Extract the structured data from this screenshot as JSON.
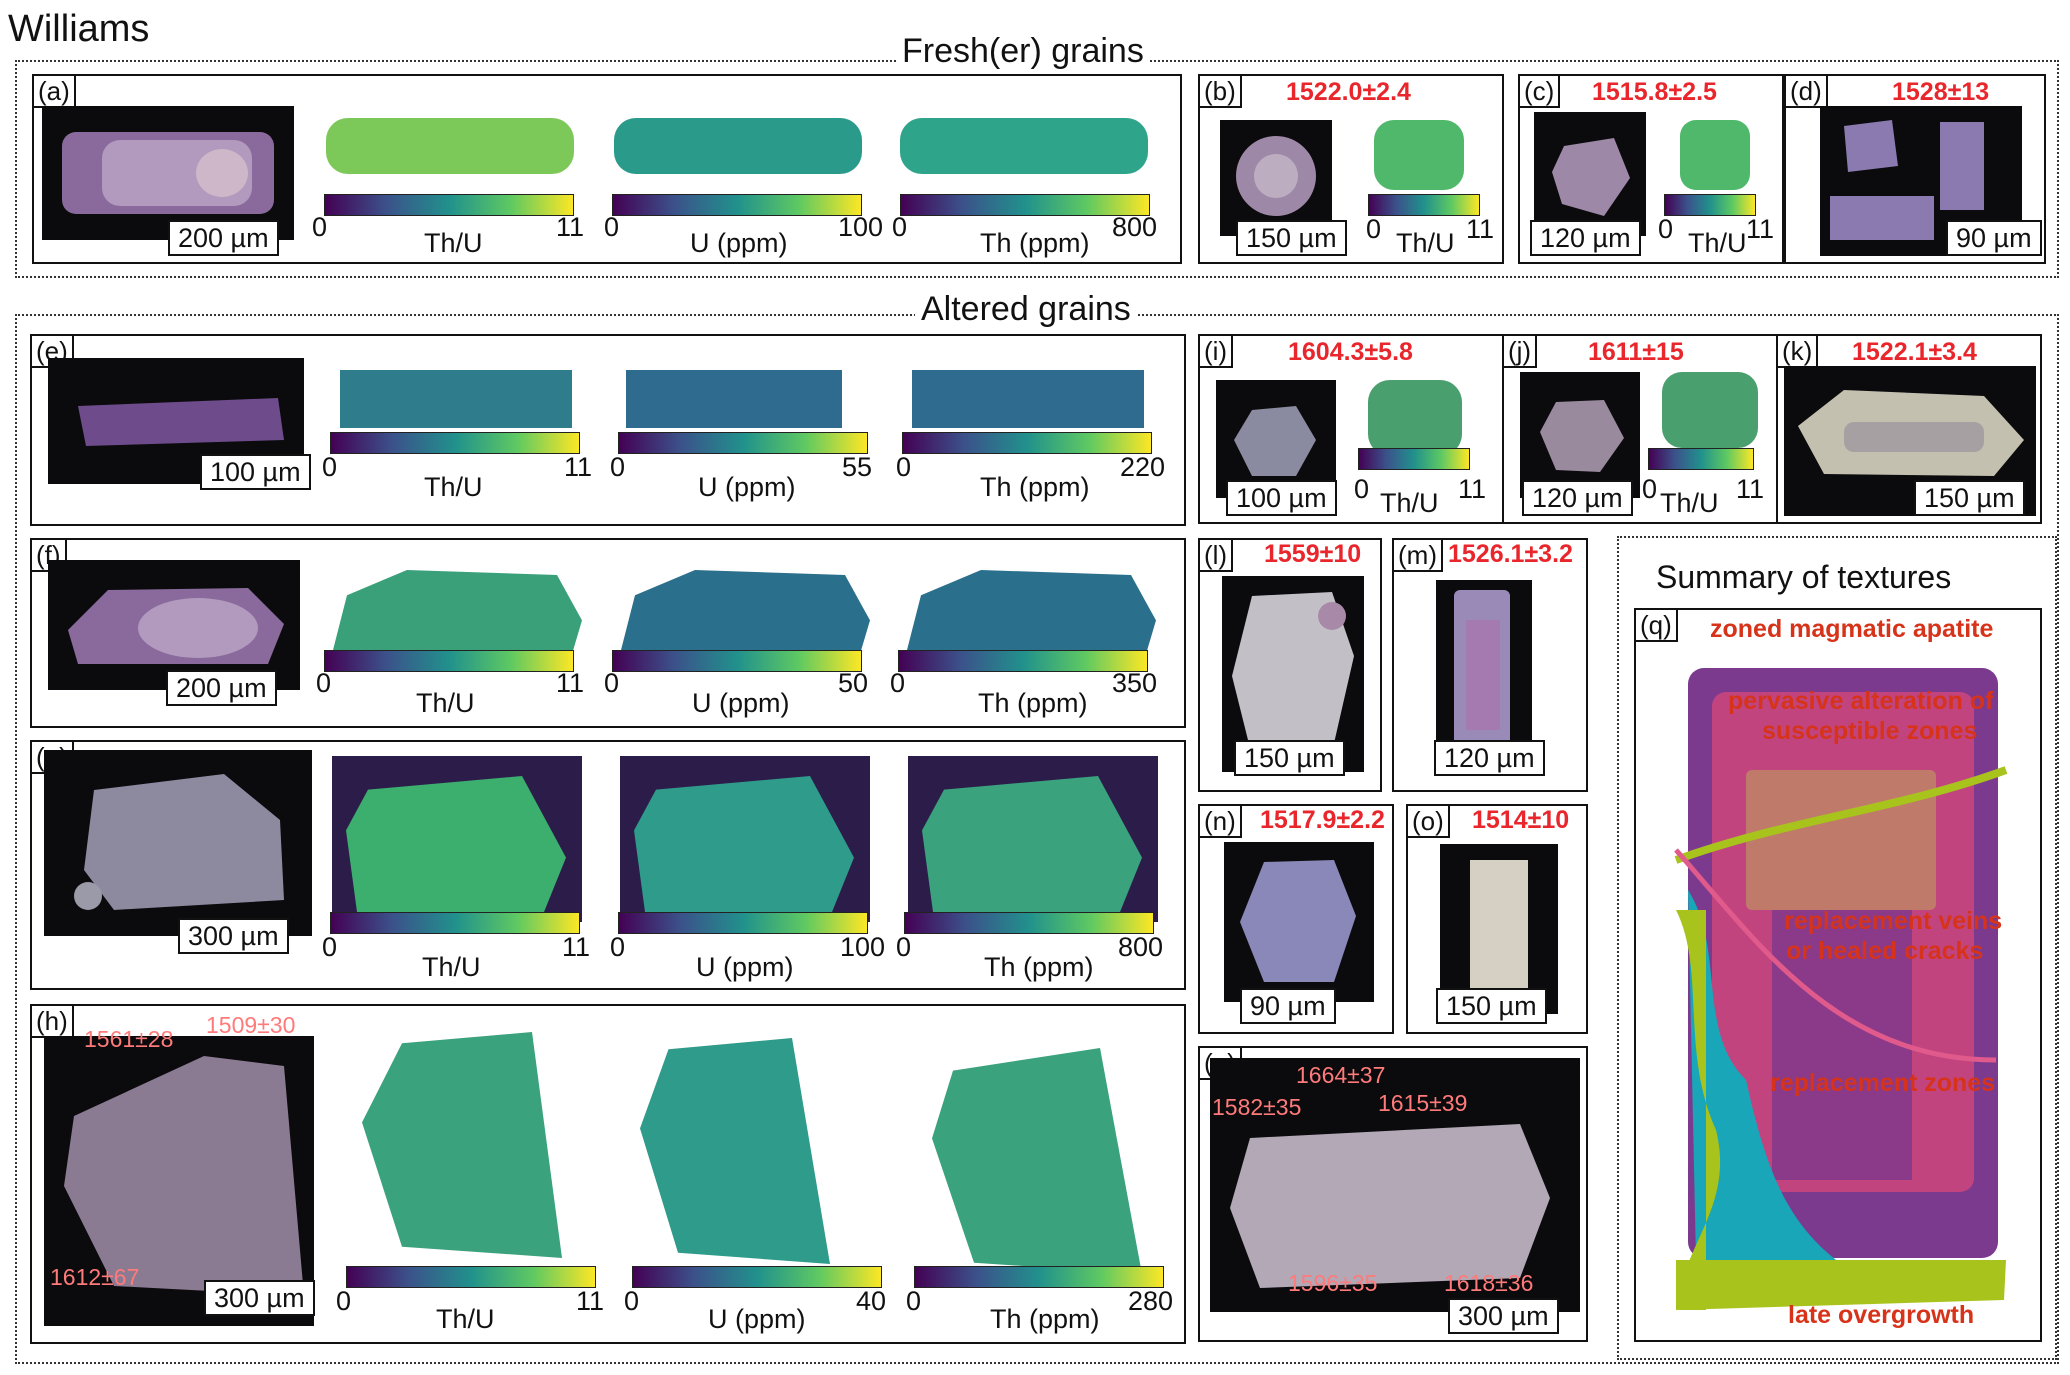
{
  "figure_title": "Williams",
  "sections": {
    "fresh": "Fresh(er) grains",
    "altered": "Altered grains",
    "summary": "Summary of textures"
  },
  "panels": {
    "a": {
      "label": "(a)",
      "scale": "200 µm",
      "bars": [
        {
          "min": "0",
          "max": "11",
          "name": "Th/U"
        },
        {
          "min": "0",
          "max": "100",
          "name": "U (ppm)"
        },
        {
          "min": "0",
          "max": "800",
          "name": "Th (ppm)"
        }
      ]
    },
    "b": {
      "label": "(b)",
      "age": "1522.0±2.4",
      "scale": "150 µm",
      "bar": {
        "min": "0",
        "max": "11",
        "name": "Th/U"
      }
    },
    "c": {
      "label": "(c)",
      "age": "1515.8±2.5",
      "scale": "120 µm",
      "bar": {
        "min": "0",
        "max": "11",
        "name": "Th/U"
      }
    },
    "d": {
      "label": "(d)",
      "age": "1528±13",
      "scale": "90 µm"
    },
    "e": {
      "label": "(e)",
      "scale": "100 µm",
      "bars": [
        {
          "min": "0",
          "max": "11",
          "name": "Th/U"
        },
        {
          "min": "0",
          "max": "55",
          "name": "U (ppm)"
        },
        {
          "min": "0",
          "max": "220",
          "name": "Th (ppm)"
        }
      ]
    },
    "f": {
      "label": "(f)",
      "scale": "200 µm",
      "bars": [
        {
          "min": "0",
          "max": "11",
          "name": "Th/U"
        },
        {
          "min": "0",
          "max": "50",
          "name": "U (ppm)"
        },
        {
          "min": "0",
          "max": "350",
          "name": "Th (ppm)"
        }
      ]
    },
    "g": {
      "label": "(g)",
      "scale": "300 µm",
      "bars": [
        {
          "min": "0",
          "max": "11",
          "name": "Th/U"
        },
        {
          "min": "0",
          "max": "100",
          "name": "U (ppm)"
        },
        {
          "min": "0",
          "max": "800",
          "name": "Th (ppm)"
        }
      ]
    },
    "h": {
      "label": "(h)",
      "scale": "300 µm",
      "spots": [
        "1561±28",
        "1509±30",
        "1612±67"
      ],
      "bars": [
        {
          "min": "0",
          "max": "11",
          "name": "Th/U"
        },
        {
          "min": "0",
          "max": "40",
          "name": "U (ppm)"
        },
        {
          "min": "0",
          "max": "280",
          "name": "Th (ppm)"
        }
      ]
    },
    "i": {
      "label": "(i)",
      "age": "1604.3±5.8",
      "scale": "100 µm",
      "bar": {
        "min": "0",
        "max": "11",
        "name": "Th/U"
      }
    },
    "j": {
      "label": "(j)",
      "age": "1611±15",
      "scale": "120 µm",
      "bar": {
        "min": "0",
        "max": "11",
        "name": "Th/U"
      }
    },
    "k": {
      "label": "(k)",
      "age": "1522.1±3.4",
      "scale": "150 µm"
    },
    "l": {
      "label": "(l)",
      "age": "1559±10",
      "scale": "150 µm"
    },
    "m": {
      "label": "(m)",
      "age": "1526.1±3.2",
      "scale": "120 µm"
    },
    "n": {
      "label": "(n)",
      "age": "1517.9±2.2",
      "scale": "90 µm"
    },
    "o": {
      "label": "(o)",
      "age": "1514±10",
      "scale": "150 µm"
    },
    "p": {
      "label": "(p)",
      "scale": "300 µm",
      "spots": [
        "1664±37",
        "1582±35",
        "1615±39",
        "1596±35",
        "1618±36"
      ]
    },
    "q": {
      "label": "(q)",
      "annotations": [
        "zoned magmatic apatite",
        "pervasive alteration of",
        "susceptible zones",
        "replacement veins",
        "or healed cracks",
        "replacement zones",
        "late overgrowth"
      ]
    }
  },
  "colors": {
    "age": "#e8262c",
    "annotation": "#d6331a",
    "spot": "#ff7a7a",
    "magmatic": "#7b3a8e",
    "alteration": "#c2447e",
    "veins": "#e05a8c",
    "replacement": "#18a6b8",
    "overgrowth": "#a7c31c"
  }
}
